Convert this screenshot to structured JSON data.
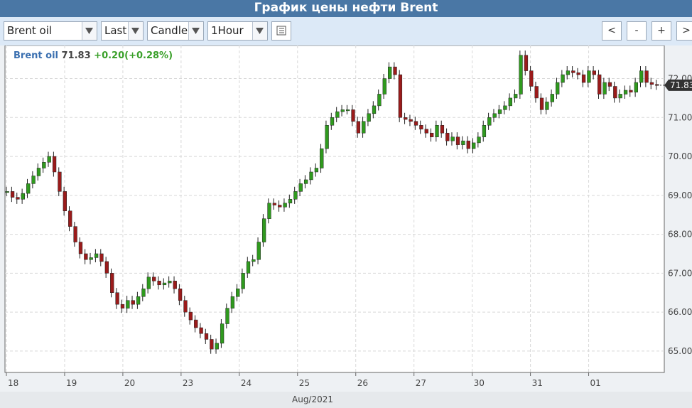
{
  "title": "График цены нефти Brent",
  "toolbar": {
    "instrument": "Brent oil",
    "price_type": "Last",
    "chart_style": "Candle",
    "interval": "1Hour",
    "nav_prev": "<",
    "zoom_out": "-",
    "zoom_in": "+",
    "nav_next": ">"
  },
  "legend": {
    "symbol": "Brent oil",
    "price": "71.83",
    "change": "+0.20(+0.28%)"
  },
  "colors": {
    "up": "#2f9a1e",
    "down": "#9b1b1b",
    "title_bar": "#4a77a5",
    "toolbar_bg": "#dce9f7"
  },
  "chart_data": {
    "type": "candlestick",
    "instrument": "Brent oil",
    "interval": "1Hour",
    "x_tick_labels": [
      "18",
      "19",
      "20",
      "23",
      "24",
      "25",
      "26",
      "27",
      "30",
      "31",
      "01"
    ],
    "x_tick_index": [
      0,
      24,
      48,
      72,
      96,
      120,
      144,
      168,
      192,
      216,
      240
    ],
    "x_group_label": "Aug/2021",
    "y_ticks": [
      65,
      66,
      67,
      68,
      69,
      70,
      71,
      72
    ],
    "y_tick_labels": [
      "65.00",
      "66.00",
      "67.00",
      "68.00",
      "69.00",
      "70.00",
      "71.00",
      "72.00"
    ],
    "ylim": [
      64.45,
      72.85
    ],
    "current_price": 71.83,
    "current_price_label": "71.83",
    "grid": true,
    "gaps_after_index": [
      143
    ],
    "closes": [
      69.1,
      68.95,
      68.9,
      69.05,
      69.3,
      69.5,
      69.7,
      69.85,
      70.0,
      69.6,
      69.1,
      68.6,
      68.2,
      67.8,
      67.5,
      67.35,
      67.4,
      67.5,
      67.3,
      67.0,
      66.5,
      66.2,
      66.1,
      66.3,
      66.2,
      66.4,
      66.6,
      66.9,
      66.8,
      66.7,
      66.75,
      66.8,
      66.6,
      66.3,
      66.0,
      65.8,
      65.6,
      65.45,
      65.3,
      65.05,
      65.2,
      65.7,
      66.1,
      66.4,
      66.6,
      67.0,
      67.3,
      67.35,
      67.8,
      68.4,
      68.8,
      68.75,
      68.7,
      68.8,
      68.9,
      69.1,
      69.3,
      69.4,
      69.6,
      69.7,
      70.2,
      70.8,
      71.0,
      71.15,
      71.2,
      71.2,
      70.9,
      70.6,
      70.9,
      71.1,
      71.3,
      71.6,
      72.0,
      72.3,
      72.1,
      71.0,
      70.95,
      70.9,
      70.8,
      70.7,
      70.6,
      70.5,
      70.8,
      70.6,
      70.4,
      70.5,
      70.3,
      70.4,
      70.2,
      70.35,
      70.5,
      70.8,
      71.0,
      71.1,
      71.2,
      71.3,
      71.5,
      71.6,
      72.6,
      72.2,
      71.8,
      71.5,
      71.2,
      71.4,
      71.6,
      71.9,
      72.1,
      72.2,
      72.15,
      72.1,
      71.9,
      72.2,
      72.1,
      71.6,
      71.9,
      71.8,
      71.5,
      71.6,
      71.7,
      71.65,
      71.9,
      72.2,
      71.9,
      71.85,
      71.83
    ],
    "closes_note_visible_labels_only": true
  },
  "ui": {
    "price_box_label": "71.83"
  }
}
